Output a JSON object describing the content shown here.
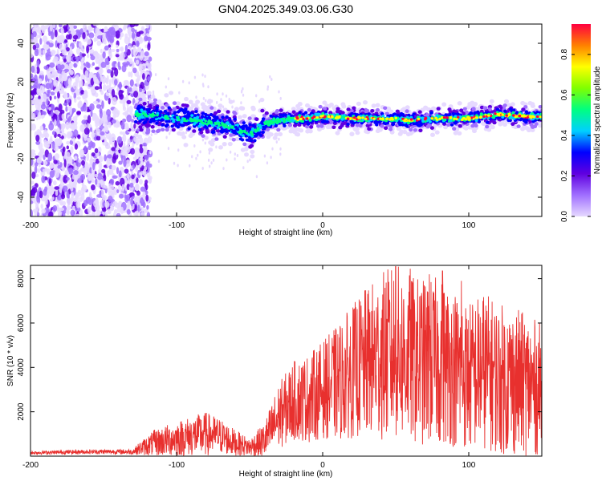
{
  "title": "GN04.2025.349.03.06.G30",
  "colors": {
    "line": "#e8302e",
    "axis": "#000000",
    "background": "#ffffff"
  },
  "colormap_stops": [
    "#e6d9ff",
    "#a070ff",
    "#6000e0",
    "#0000ff",
    "#00d0ff",
    "#00ff80",
    "#80ff00",
    "#ffff00",
    "#ff8000",
    "#ff0040"
  ],
  "chart_data": [
    {
      "type": "heatmap",
      "name": "spectrogram",
      "xlabel": "Height of straight line (km)",
      "ylabel": "Frequency (Hz)",
      "xlim": [
        -200,
        150
      ],
      "ylim": [
        -50,
        50
      ],
      "xticks": [
        -200,
        -100,
        0,
        100
      ],
      "yticks": [
        -40,
        -20,
        0,
        20,
        40
      ],
      "ridge": {
        "x": [
          -125,
          -110,
          -100,
          -90,
          -80,
          -70,
          -60,
          -55,
          -50,
          -45,
          -40,
          -30,
          -20,
          -10,
          0,
          20,
          40,
          60,
          80,
          100,
          120,
          140,
          150
        ],
        "y": [
          3,
          2,
          1,
          0,
          -1,
          -2,
          -4,
          -6,
          -7,
          -5,
          -2,
          0,
          1,
          1,
          2,
          1,
          1,
          0,
          1,
          1,
          3,
          2,
          2
        ]
      },
      "colorbar": {
        "label": "Normalized spectral amplitude",
        "range": [
          0.0,
          0.95
        ],
        "ticks": [
          0.0,
          0.2,
          0.4,
          0.6,
          0.8
        ]
      }
    },
    {
      "type": "line",
      "name": "snr",
      "xlabel": "Height of straight line (km)",
      "ylabel": "SNR (10 * v/v)",
      "xlim": [
        -200,
        150
      ],
      "ylim": [
        0,
        8600
      ],
      "xticks": [
        -200,
        -100,
        0,
        100
      ],
      "yticks": [
        2000,
        4000,
        6000,
        8000
      ],
      "envelope": {
        "x": [
          -200,
          -160,
          -130,
          -125,
          -115,
          -100,
          -90,
          -80,
          -70,
          -60,
          -50,
          -40,
          -35,
          -30,
          -20,
          -10,
          0,
          10,
          20,
          30,
          40,
          50,
          60,
          70,
          80,
          90,
          100,
          110,
          120,
          130,
          140,
          150
        ],
        "mean": [
          150,
          200,
          200,
          350,
          600,
          800,
          900,
          1000,
          900,
          600,
          400,
          700,
          1200,
          1800,
          2500,
          2600,
          3000,
          3300,
          3800,
          4200,
          4500,
          4700,
          4400,
          4200,
          4300,
          4000,
          3600,
          3900,
          3500,
          3400,
          3200,
          3000
        ],
        "spread": [
          80,
          100,
          120,
          300,
          600,
          800,
          900,
          1000,
          800,
          600,
          400,
          800,
          1200,
          1500,
          1800,
          2000,
          2200,
          2600,
          3000,
          3400,
          3800,
          4000,
          3800,
          3800,
          3800,
          3600,
          3400,
          3600,
          3400,
          3400,
          3200,
          3000
        ]
      },
      "peak_values": [
        8550,
        8450,
        8350,
        8200,
        7900
      ]
    }
  ]
}
